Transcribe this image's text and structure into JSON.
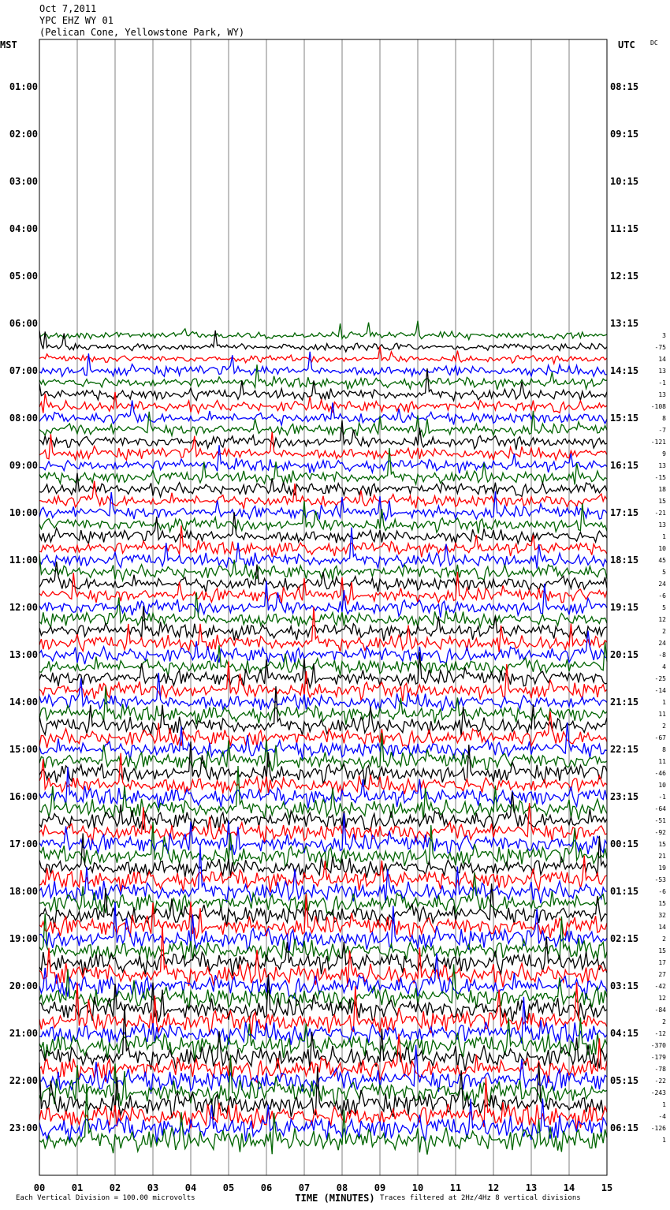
{
  "header": {
    "date": "Oct 7,2011",
    "station": "YPC EHZ WY 01",
    "location": "(Pelican Cone, Yellowstone Park, WY)"
  },
  "chart_data": {
    "type": "line",
    "left_axis_label": "MST",
    "right_axis_label": "UTC",
    "dc_label": "DC",
    "left_hour_labels": [
      "01:00",
      "02:00",
      "03:00",
      "04:00",
      "05:00",
      "06:00",
      "07:00",
      "08:00",
      "09:00",
      "10:00",
      "11:00",
      "12:00",
      "13:00",
      "14:00",
      "15:00",
      "16:00",
      "17:00",
      "18:00",
      "19:00",
      "20:00",
      "21:00",
      "22:00",
      "23:00"
    ],
    "right_hour_labels": [
      "08:15",
      "09:15",
      "10:15",
      "11:15",
      "12:15",
      "13:15",
      "14:15",
      "15:15",
      "16:15",
      "17:15",
      "18:15",
      "19:15",
      "20:15",
      "21:15",
      "22:15",
      "23:15",
      "00:15",
      "01:15",
      "02:15",
      "03:15",
      "04:15",
      "05:15",
      "06:15"
    ],
    "x_ticks": [
      "00",
      "01",
      "02",
      "03",
      "04",
      "05",
      "06",
      "07",
      "08",
      "09",
      "10",
      "11",
      "12",
      "13",
      "14",
      "15"
    ],
    "xlabel": "TIME (MINUTES)",
    "trace_colors": [
      "#000000",
      "#ff0000",
      "#0000ff",
      "#006400"
    ],
    "first_trace_hour": 6.25,
    "dc_offsets": [
      "3",
      "-75",
      "14",
      "13",
      "-1",
      "13",
      "-108",
      "8",
      "-7",
      "-121",
      "9",
      "13",
      "-15",
      "18",
      "15",
      "-21",
      "13",
      "1",
      "10",
      "45",
      "5",
      "24",
      "-6",
      "5",
      "12",
      "2",
      "24",
      "-8",
      "4",
      "-25",
      "-14",
      "1",
      "11",
      "2",
      "-67",
      "8",
      "11",
      "-46",
      "10",
      "-1",
      "-64",
      "-51",
      "-92",
      "15",
      "21",
      "19",
      "-53",
      "-6",
      "15",
      "32",
      "14",
      "2",
      "15",
      "17",
      "27",
      "-42",
      "12",
      "-84",
      "2",
      "-12",
      "-370",
      "-179",
      "-78",
      "-22",
      "-243",
      "1",
      "-4",
      "-126",
      "1"
    ],
    "footer_left": "Each Vertical Division = 100.00 microvolts",
    "footer_right": "Traces filtered at 2Hz/4Hz 8 vertical divisions"
  }
}
